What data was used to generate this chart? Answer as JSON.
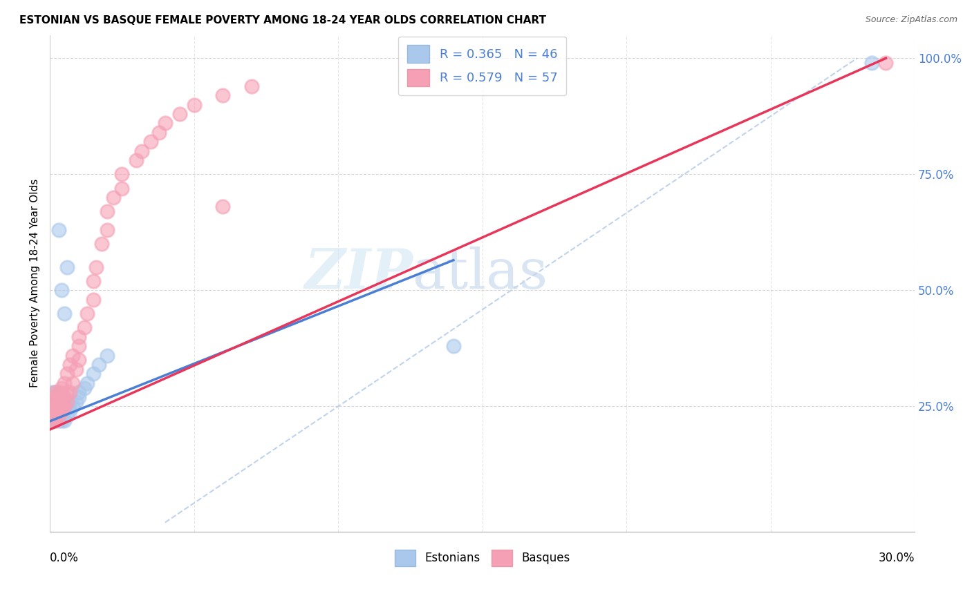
{
  "title": "ESTONIAN VS BASQUE FEMALE POVERTY AMONG 18-24 YEAR OLDS CORRELATION CHART",
  "source": "Source: ZipAtlas.com",
  "ylabel": "Female Poverty Among 18-24 Year Olds",
  "xmin": 0.0,
  "xmax": 0.3,
  "ymin": -0.02,
  "ymax": 1.05,
  "blue_color": "#aac8eb",
  "pink_color": "#f5a0b5",
  "blue_line_color": "#4a7fd4",
  "pink_line_color": "#e8365a",
  "diag_color": "#b0c8e8",
  "legend_blue_text": "R = 0.365   N = 46",
  "legend_pink_text": "R = 0.579   N = 57",
  "legend_label_blue": "Estonians",
  "legend_label_pink": "Basques",
  "blue_scatter_x": [
    0.001,
    0.001,
    0.001,
    0.001,
    0.001,
    0.001,
    0.001,
    0.001,
    0.001,
    0.002,
    0.002,
    0.002,
    0.002,
    0.002,
    0.002,
    0.002,
    0.003,
    0.003,
    0.003,
    0.003,
    0.003,
    0.004,
    0.004,
    0.004,
    0.005,
    0.005,
    0.005,
    0.006,
    0.006,
    0.007,
    0.007,
    0.008,
    0.009,
    0.01,
    0.01,
    0.012,
    0.013,
    0.015,
    0.017,
    0.02,
    0.003,
    0.004,
    0.005,
    0.006,
    0.14,
    0.285
  ],
  "blue_scatter_y": [
    0.22,
    0.22,
    0.23,
    0.24,
    0.24,
    0.25,
    0.26,
    0.27,
    0.28,
    0.22,
    0.23,
    0.24,
    0.25,
    0.26,
    0.27,
    0.28,
    0.22,
    0.23,
    0.24,
    0.25,
    0.27,
    0.22,
    0.23,
    0.25,
    0.22,
    0.24,
    0.26,
    0.23,
    0.25,
    0.24,
    0.26,
    0.25,
    0.26,
    0.27,
    0.28,
    0.29,
    0.3,
    0.32,
    0.34,
    0.36,
    0.63,
    0.5,
    0.45,
    0.55,
    0.38,
    0.99
  ],
  "pink_scatter_x": [
    0.001,
    0.001,
    0.001,
    0.001,
    0.001,
    0.001,
    0.002,
    0.002,
    0.002,
    0.002,
    0.002,
    0.002,
    0.003,
    0.003,
    0.003,
    0.003,
    0.003,
    0.004,
    0.004,
    0.004,
    0.004,
    0.005,
    0.005,
    0.005,
    0.006,
    0.006,
    0.006,
    0.007,
    0.007,
    0.008,
    0.008,
    0.009,
    0.01,
    0.01,
    0.01,
    0.012,
    0.013,
    0.015,
    0.015,
    0.016,
    0.018,
    0.02,
    0.02,
    0.022,
    0.025,
    0.025,
    0.03,
    0.032,
    0.035,
    0.038,
    0.04,
    0.045,
    0.05,
    0.06,
    0.07,
    0.06,
    0.29
  ],
  "pink_scatter_y": [
    0.22,
    0.23,
    0.24,
    0.25,
    0.26,
    0.27,
    0.22,
    0.23,
    0.24,
    0.25,
    0.26,
    0.28,
    0.23,
    0.24,
    0.25,
    0.26,
    0.28,
    0.24,
    0.25,
    0.27,
    0.29,
    0.25,
    0.27,
    0.3,
    0.26,
    0.28,
    0.32,
    0.28,
    0.34,
    0.3,
    0.36,
    0.33,
    0.35,
    0.38,
    0.4,
    0.42,
    0.45,
    0.48,
    0.52,
    0.55,
    0.6,
    0.63,
    0.67,
    0.7,
    0.72,
    0.75,
    0.78,
    0.8,
    0.82,
    0.84,
    0.86,
    0.88,
    0.9,
    0.92,
    0.94,
    0.68,
    0.99
  ],
  "blue_line": {
    "x0": 0.0,
    "y0": 0.218,
    "x1": 0.14,
    "y1": 0.565
  },
  "pink_line": {
    "x0": 0.0,
    "y0": 0.2,
    "x1": 0.29,
    "y1": 1.0
  },
  "diag_line": {
    "x0": 0.04,
    "y0": 0.0,
    "x1": 0.28,
    "y1": 1.0
  }
}
